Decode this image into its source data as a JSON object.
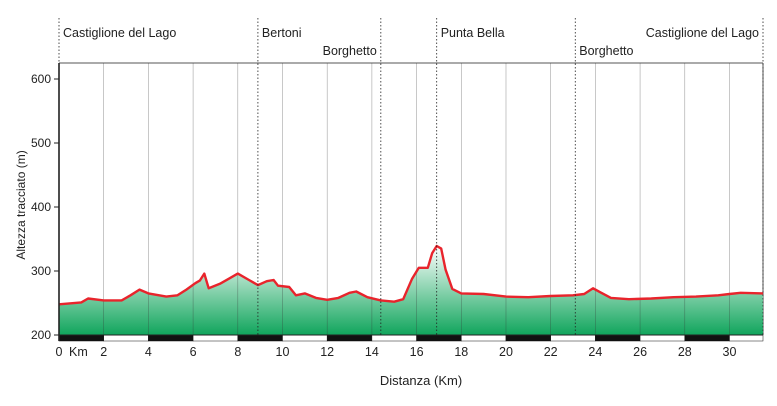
{
  "chart_data": {
    "type": "area",
    "title": "",
    "xlabel": "Distanza (Km)",
    "ylabel": "Altezza tracciato (m)",
    "x_unit_label": "Km",
    "xlim": [
      0,
      31.5
    ],
    "ylim": [
      200,
      625
    ],
    "x_ticks": [
      0,
      2,
      4,
      6,
      8,
      10,
      12,
      14,
      16,
      18,
      20,
      22,
      24,
      26,
      28,
      30
    ],
    "y_ticks": [
      200,
      300,
      400,
      500,
      600
    ],
    "grid": "vertical",
    "colors": {
      "line": "#e8242c",
      "fill_top": "#ffffff",
      "fill_bottom": "#10a55c",
      "grid": "#333333"
    },
    "waypoints": [
      {
        "name": "Castiglione del Lago",
        "km": 0,
        "row": 1,
        "align": "start"
      },
      {
        "name": "Bertoni",
        "km": 8.9,
        "row": 1,
        "align": "start"
      },
      {
        "name": "Borghetto",
        "km": 14.4,
        "row": 2,
        "align": "end"
      },
      {
        "name": "Punta Bella",
        "km": 16.9,
        "row": 1,
        "align": "start"
      },
      {
        "name": "Borghetto",
        "km": 23.1,
        "row": 2,
        "align": "start"
      },
      {
        "name": "Castiglione del Lago",
        "km": 31.5,
        "row": 1,
        "align": "end"
      }
    ],
    "series": [
      {
        "x": [
          0,
          1,
          1.3,
          2,
          2.8,
          3.2,
          3.6,
          4,
          4.8,
          5.3,
          5.7,
          6.1,
          6.3,
          6.5,
          6.7,
          7.2,
          7.6,
          8,
          8.5,
          8.9,
          9.3,
          9.6,
          9.8,
          10.3,
          10.6,
          11,
          11.5,
          12,
          12.5,
          13,
          13.3,
          13.8,
          14.4,
          15,
          15.4,
          15.8,
          16.1,
          16.5,
          16.7,
          16.9,
          17.1,
          17.3,
          17.6,
          18,
          19,
          20,
          21,
          22,
          23,
          23.5,
          23.9,
          24.2,
          24.7,
          25.5,
          26.5,
          27.5,
          28.5,
          29.5,
          30,
          30.5,
          31.5
        ],
        "y": [
          248,
          251,
          257,
          254,
          254,
          262,
          271,
          265,
          260,
          262,
          271,
          281,
          285,
          296,
          273,
          280,
          288,
          296,
          286,
          278,
          284,
          286,
          277,
          275,
          262,
          265,
          258,
          255,
          258,
          266,
          268,
          259,
          254,
          252,
          256,
          288,
          305,
          305,
          328,
          339,
          335,
          302,
          272,
          265,
          264,
          260,
          259,
          261,
          262,
          264,
          273,
          267,
          258,
          256,
          257,
          259,
          260,
          262,
          264,
          266,
          265
        ]
      }
    ]
  }
}
